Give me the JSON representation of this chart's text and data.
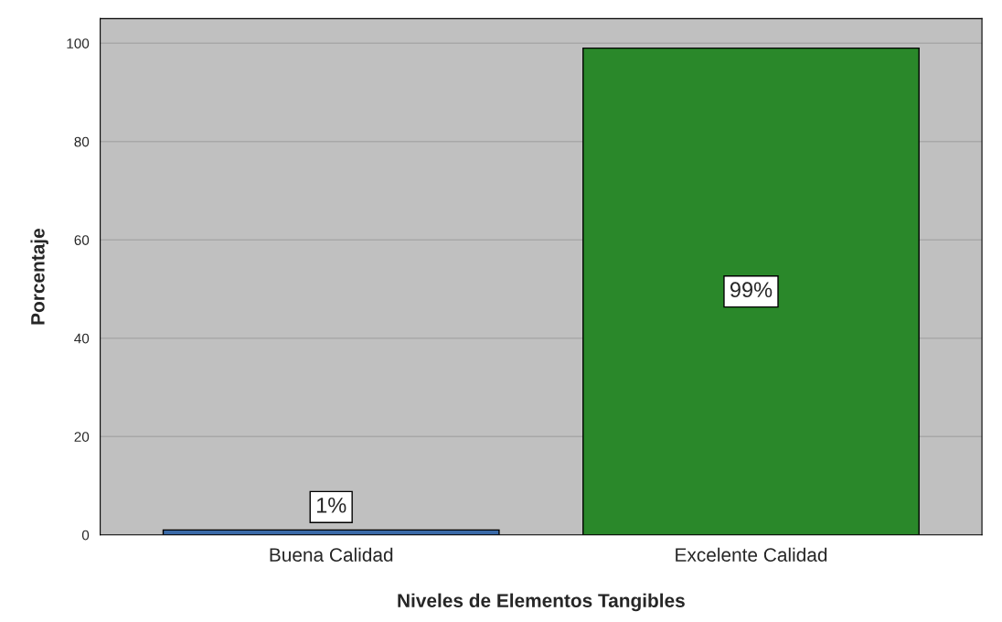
{
  "chart_data": {
    "type": "bar",
    "categories": [
      "Buena Calidad",
      "Excelente Calidad"
    ],
    "values": [
      1,
      99
    ],
    "colors": [
      "#3a6aa8",
      "#2a882a"
    ],
    "value_labels": [
      "1%",
      "99%"
    ],
    "xlabel": "Niveles de Elementos Tangibles",
    "ylabel": "Porcentaje",
    "ylim": [
      0,
      105
    ],
    "yticks": [
      0,
      20,
      40,
      60,
      80,
      100
    ],
    "grid": "y",
    "legend": false
  }
}
